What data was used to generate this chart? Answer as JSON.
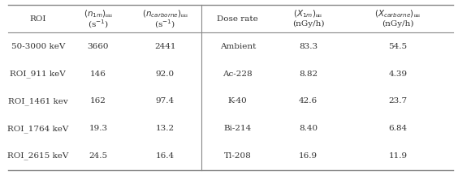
{
  "left_data": [
    [
      "50-3000 keV",
      "3660",
      "2441"
    ],
    [
      "ROI_911 keV",
      "146",
      "92.0"
    ],
    [
      "ROI_1461 kev",
      "162",
      "97.4"
    ],
    [
      "ROI_1764 keV",
      "19.3",
      "13.2"
    ],
    [
      "ROI_2615 keV",
      "24.5",
      "16.4"
    ]
  ],
  "right_data": [
    [
      "Ambient",
      "83.3",
      "54.5"
    ],
    [
      "Ac-228",
      "8.82",
      "4.39"
    ],
    [
      "K-40",
      "42.6",
      "23.7"
    ],
    [
      "Bi-214",
      "8.40",
      "6.84"
    ],
    [
      "Tl-208",
      "16.9",
      "11.9"
    ]
  ],
  "fig_width": 5.64,
  "fig_height": 2.16,
  "dpi": 100,
  "background_color": "#ffffff",
  "line_color": "#888888",
  "text_color": "#333333",
  "font_size": 7.5,
  "header_font_size": 7.5
}
